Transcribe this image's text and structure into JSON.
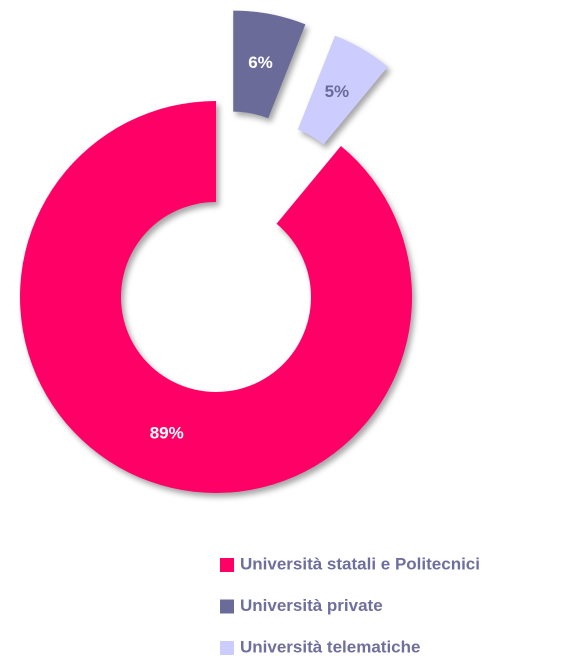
{
  "chart_data": {
    "type": "donut",
    "categories": [
      "Università statali e Politecnici",
      "Università private",
      "Università telematiche"
    ],
    "values": [
      89,
      6,
      5
    ],
    "value_labels": [
      "89%",
      "6%",
      "5%"
    ],
    "colors": [
      "#ff0066",
      "#6b6b9a",
      "#ccccff"
    ],
    "label_colors": [
      "#ffffff",
      "#ffffff",
      "#6b6b9a"
    ],
    "exploded": [
      false,
      true,
      true
    ]
  }
}
